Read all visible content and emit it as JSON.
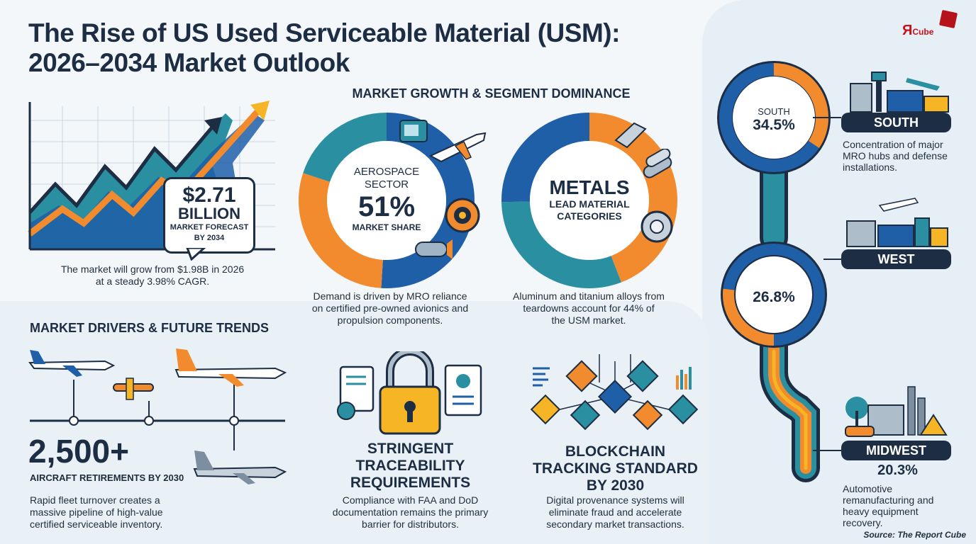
{
  "title_line1": "The Rise of US Used Serviceable Material (USM):",
  "title_line2": "2026–2034 Market Outlook",
  "logo": {
    "text_main": "Я",
    "text_sub": "Cube"
  },
  "forecast": {
    "value": "$2.71",
    "unit": "BILLION",
    "caption_line1": "MARKET FORECAST",
    "caption_line2": "BY 2034",
    "desc_line1": "The market will grow from $1.98B in 2026",
    "desc_line2": "at a steady 3.98% CAGR."
  },
  "segment": {
    "heading": "MARKET GROWTH & SEGMENT DOMINANCE",
    "aero_line1": "AEROSPACE",
    "aero_line2": "SECTOR",
    "aero_value": "51%",
    "aero_caption": "MARKET SHARE",
    "aero_desc_line1": "Demand is driven by MRO reliance",
    "aero_desc_line2": "on certified pre-owned avionics and",
    "aero_desc_line3": "propulsion components.",
    "metals_title": "METALS",
    "metals_line1": "LEAD MATERIAL",
    "metals_line2": "CATEGORIES",
    "metals_desc_line1": "Aluminum and titanium alloys from",
    "metals_desc_line2": "teardowns account for 44% of",
    "metals_desc_line3": "the USM market."
  },
  "drivers": {
    "heading": "MARKET DRIVERS & FUTURE TRENDS",
    "retire_value": "2,500+",
    "retire_caption": "AIRCRAFT RETIREMENTS BY 2030",
    "retire_desc_line1": "Rapid fleet turnover creates a",
    "retire_desc_line2": "massive pipeline of high-value",
    "retire_desc_line3": "certified serviceable inventory.",
    "trace_title_line1": "STRINGENT",
    "trace_title_line2": "TRACEABILITY",
    "trace_title_line3": "REQUIREMENTS",
    "trace_desc_line1": "Compliance with FAA and DoD",
    "trace_desc_line2": "documentation remains the primary",
    "trace_desc_line3": "barrier for distributors.",
    "block_title_line1": "BLOCKCHAIN",
    "block_title_line2": "TRACKING STANDARD",
    "block_title_line3": "BY 2030",
    "block_desc_line1": "Digital provenance systems will",
    "block_desc_line2": "eliminate fraud and accelerate",
    "block_desc_line3": "secondary market transactions."
  },
  "regions": {
    "south_ring_label": "SOUTH",
    "south_value": "34.5%",
    "south_pill": "SOUTH",
    "south_desc_line1": "Concentration of major",
    "south_desc_line2": "MRO hubs and defense",
    "south_desc_line3": "installations.",
    "west_pill": "WEST",
    "west_value": "26.8%",
    "midwest_pill": "MIDWEST",
    "midwest_value": "20.3%",
    "midwest_desc_line1": "Automotive",
    "midwest_desc_line2": "remanufacturing and",
    "midwest_desc_line3": "heavy equipment",
    "midwest_desc_line4": "recovery."
  },
  "source": "Source: The Report Cube",
  "colors": {
    "navy": "#1c2d44",
    "blue": "#1f5fa8",
    "teal": "#2a8fa0",
    "orange": "#f28a2e",
    "yellow": "#f5b524"
  }
}
